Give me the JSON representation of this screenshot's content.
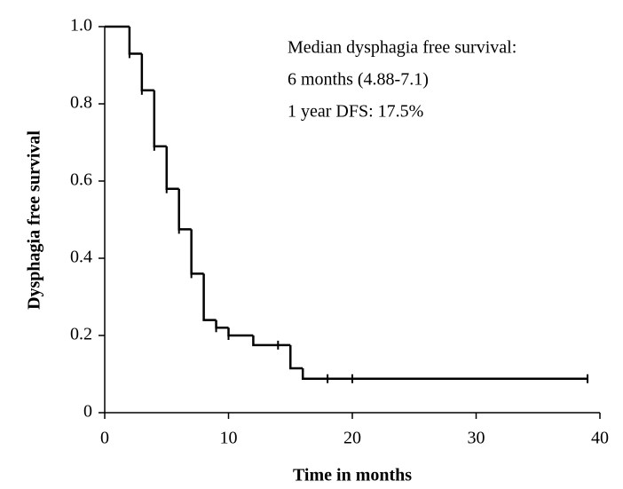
{
  "chart_data": {
    "type": "step",
    "xlabel": "Time in months",
    "ylabel": "Dysphagia free survival",
    "annotations": [
      "Median dysphagia free survival:",
      "6 months (4.88-7.1)",
      "1 year DFS: 17.5%"
    ],
    "x": [
      0,
      2,
      3,
      4,
      5,
      6,
      7,
      8,
      9,
      10,
      12,
      15,
      16,
      39
    ],
    "values": [
      1.0,
      0.93,
      0.835,
      0.69,
      0.58,
      0.475,
      0.36,
      0.24,
      0.22,
      0.2,
      0.175,
      0.115,
      0.088,
      0.088
    ],
    "censored": {
      "x": [
        2,
        3,
        4,
        5,
        6,
        7,
        9,
        10,
        14,
        18,
        20,
        39
      ],
      "values": [
        0.93,
        0.835,
        0.69,
        0.58,
        0.475,
        0.36,
        0.22,
        0.2,
        0.175,
        0.088,
        0.088,
        0.088
      ]
    },
    "color": "#000000",
    "xlim": [
      0,
      40
    ],
    "xticks": [
      0,
      10,
      20,
      30,
      40
    ],
    "ylim": [
      0,
      1
    ],
    "yticks": [
      0,
      0.2,
      0.4,
      0.6,
      0.8,
      {
        "value": 1,
        "label": "1.0"
      }
    ]
  }
}
